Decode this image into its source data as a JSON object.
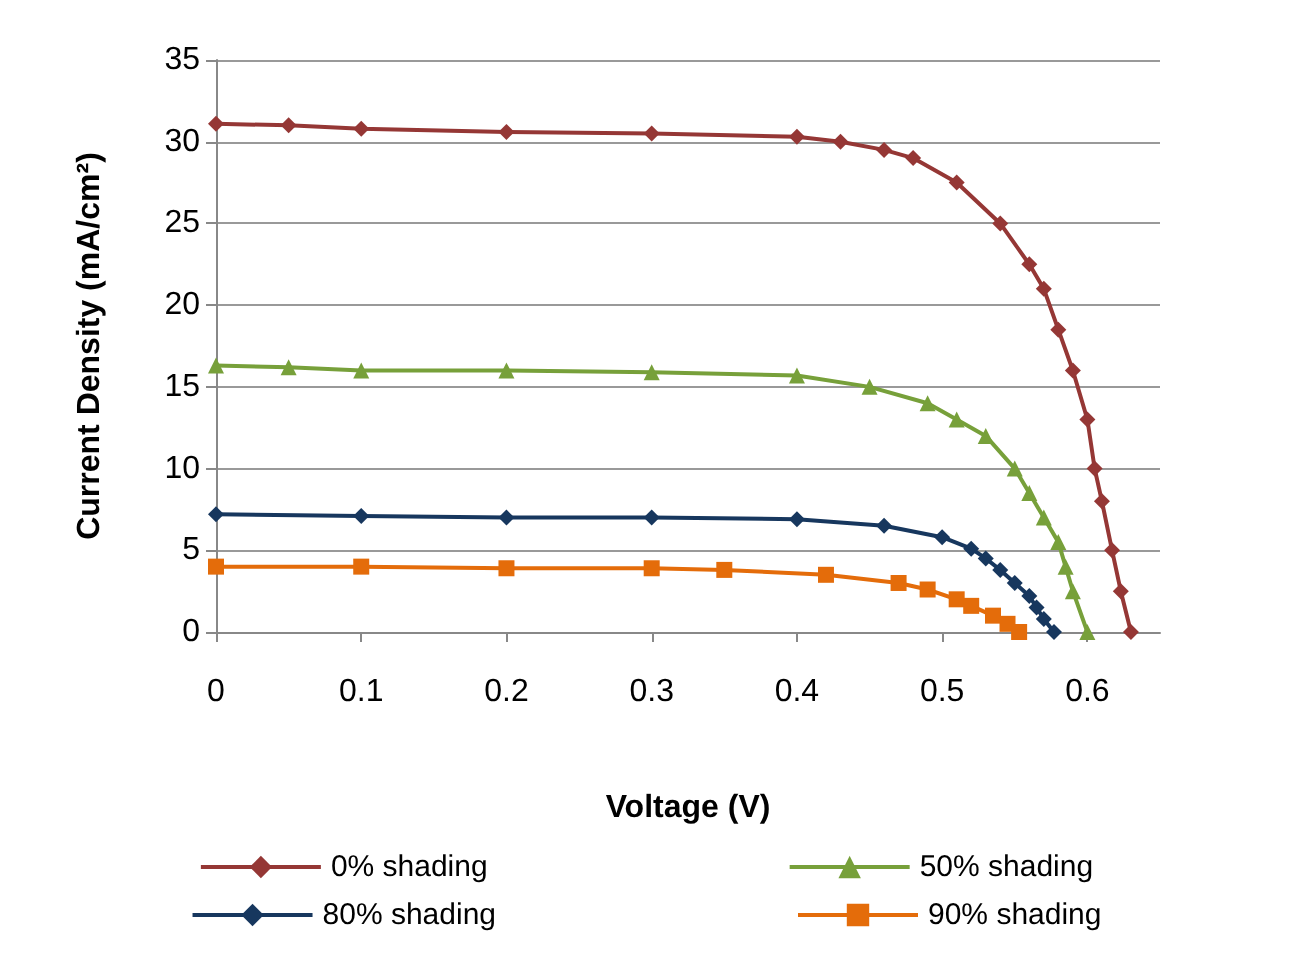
{
  "chart_data": {
    "type": "line",
    "xlabel": "Voltage (V)",
    "ylabel": "Current Density (mA/cm²)",
    "xlim": [
      0,
      0.65
    ],
    "xticks": [
      0,
      0.1,
      0.2,
      0.3,
      0.4,
      0.5,
      0.6
    ],
    "ylim": [
      0,
      35
    ],
    "yticks": [
      0,
      5,
      10,
      15,
      20,
      25,
      30,
      35
    ],
    "grid": "y",
    "legend": "bottom",
    "series": [
      {
        "name": "0% shading",
        "color": "#953735",
        "marker": "diamond",
        "x": [
          0,
          0.05,
          0.1,
          0.2,
          0.3,
          0.4,
          0.43,
          0.46,
          0.48,
          0.51,
          0.54,
          0.56,
          0.57,
          0.58,
          0.59,
          0.6,
          0.605,
          0.61,
          0.617,
          0.623,
          0.63
        ],
        "values": [
          31.1,
          31.0,
          30.8,
          30.6,
          30.5,
          30.3,
          30,
          29.5,
          29,
          27.5,
          25,
          22.5,
          21,
          18.5,
          16,
          13,
          10,
          8,
          5,
          2.5,
          0
        ]
      },
      {
        "name": "50% shading",
        "color": "#77a03a",
        "marker": "triangle",
        "x": [
          0,
          0.05,
          0.1,
          0.2,
          0.3,
          0.4,
          0.45,
          0.49,
          0.51,
          0.53,
          0.55,
          0.56,
          0.57,
          0.58,
          0.585,
          0.59,
          0.6
        ],
        "values": [
          16.3,
          16.2,
          16.0,
          16.0,
          15.9,
          15.7,
          15,
          14,
          13,
          12,
          10,
          8.5,
          7,
          5.5,
          4,
          2.5,
          0
        ]
      },
      {
        "name": "80% shading",
        "color": "#17375e",
        "marker": "diamond",
        "x": [
          0,
          0.1,
          0.2,
          0.3,
          0.4,
          0.46,
          0.5,
          0.52,
          0.53,
          0.54,
          0.55,
          0.56,
          0.565,
          0.57,
          0.577
        ],
        "values": [
          7.2,
          7.1,
          7.0,
          7.0,
          6.9,
          6.5,
          5.8,
          5.1,
          4.5,
          3.8,
          3,
          2.2,
          1.5,
          0.8,
          0
        ]
      },
      {
        "name": "90% shading",
        "color": "#e46c0a",
        "marker": "square",
        "x": [
          0,
          0.1,
          0.2,
          0.3,
          0.35,
          0.42,
          0.47,
          0.49,
          0.51,
          0.52,
          0.535,
          0.545,
          0.553
        ],
        "values": [
          4.0,
          4.0,
          3.9,
          3.9,
          3.8,
          3.5,
          3,
          2.6,
          2,
          1.6,
          1,
          0.5,
          0
        ]
      }
    ]
  }
}
